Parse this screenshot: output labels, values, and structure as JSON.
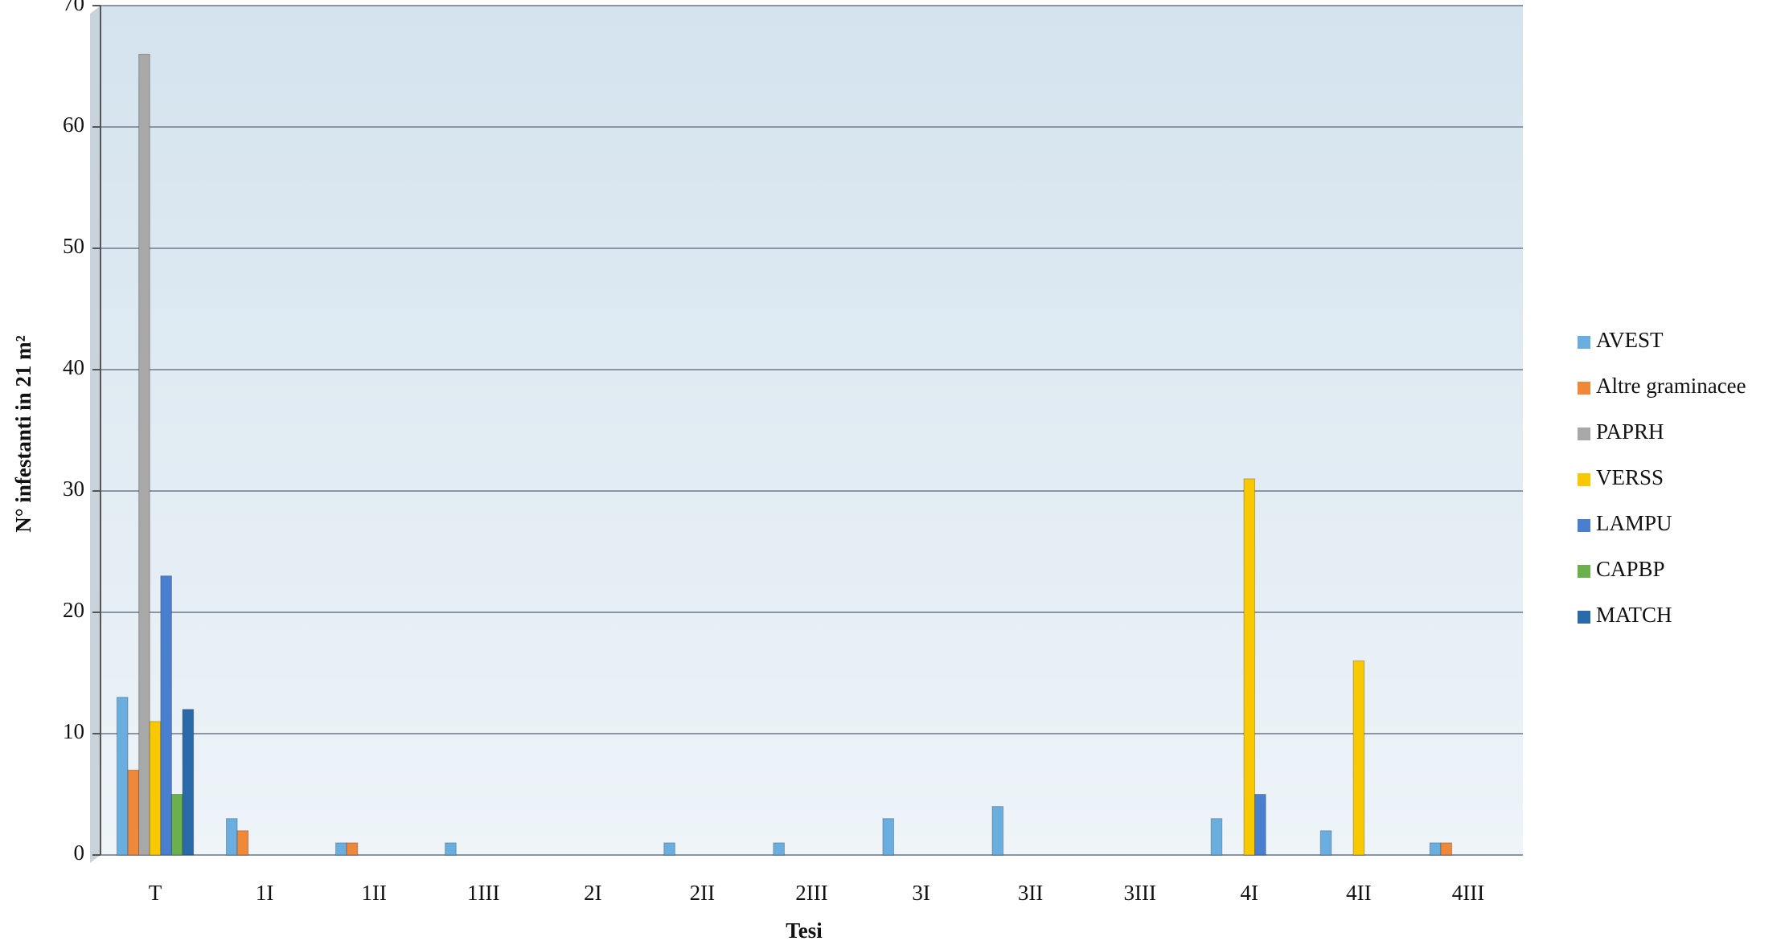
{
  "chart_data": {
    "type": "bar",
    "x_label": "Tesi",
    "y_label": "N° infestanti in 21 m²",
    "categories": [
      "T",
      "1I",
      "1II",
      "1III",
      "2I",
      "2II",
      "2III",
      "3I",
      "3II",
      "3III",
      "4I",
      "4II",
      "4III"
    ],
    "series": [
      {
        "name": "AVEST",
        "color": "#6aaee0",
        "values": [
          13,
          3,
          1,
          1,
          0,
          1,
          1,
          3,
          4,
          0,
          3,
          2,
          1
        ]
      },
      {
        "name": "Altre graminacee",
        "color": "#f0883a",
        "values": [
          7,
          2,
          1,
          0,
          0,
          0,
          0,
          0,
          0,
          0,
          0,
          0,
          1
        ]
      },
      {
        "name": "PAPRH",
        "color": "#a8a8a8",
        "values": [
          66,
          0,
          0,
          0,
          0,
          0,
          0,
          0,
          0,
          0,
          0,
          0,
          0
        ]
      },
      {
        "name": "VERSS",
        "color": "#f8c800",
        "values": [
          11,
          0,
          0,
          0,
          0,
          0,
          0,
          0,
          0,
          0,
          31,
          16,
          0
        ]
      },
      {
        "name": "LAMPU",
        "color": "#4a7fd0",
        "values": [
          23,
          0,
          0,
          0,
          0,
          0,
          0,
          0,
          0,
          0,
          5,
          0,
          0
        ]
      },
      {
        "name": "CAPBP",
        "color": "#6ab04c",
        "values": [
          5,
          0,
          0,
          0,
          0,
          0,
          0,
          0,
          0,
          0,
          0,
          0,
          0
        ]
      },
      {
        "name": "MATCH",
        "color": "#2a6aa8",
        "values": [
          12,
          0,
          0,
          0,
          0,
          0,
          0,
          0,
          0,
          0,
          0,
          0,
          0
        ]
      }
    ],
    "ylim": [
      0,
      70
    ],
    "yticks": [
      0,
      10,
      20,
      30,
      40,
      50,
      60,
      70
    ],
    "grid": true,
    "legend": "right"
  }
}
